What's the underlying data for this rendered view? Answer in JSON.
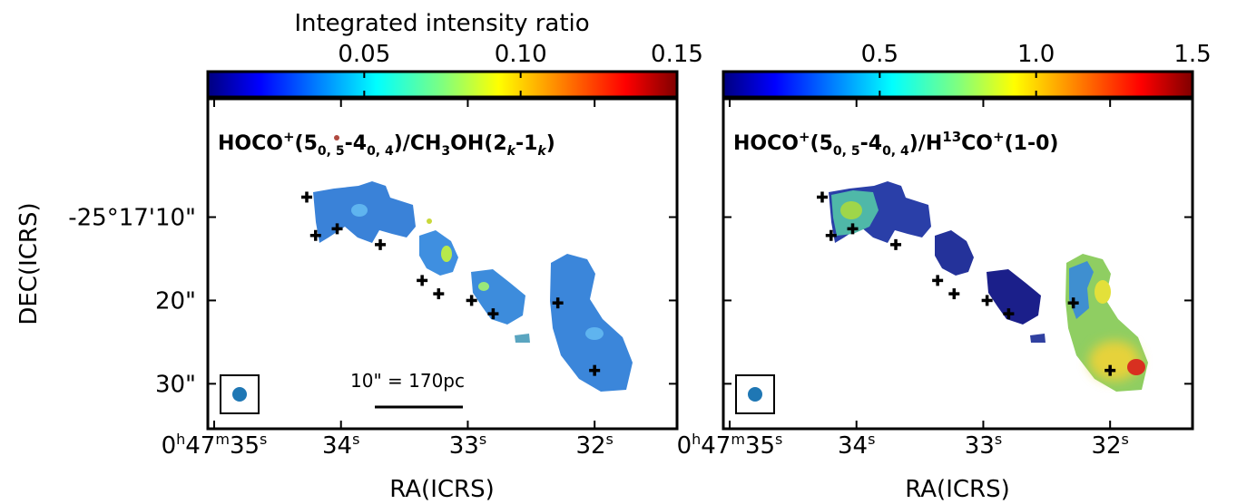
{
  "figure": {
    "shared_ylabel": "DEC(ICRS)",
    "scale_bar_label": "10\" = 170pc"
  },
  "chart_data": [
    {
      "type": "heatmap",
      "panel": "left",
      "colorbar": {
        "label": "Integrated intensity ratio",
        "min": 0.0,
        "max": 0.15,
        "ticks": [
          "0.05",
          "0.10",
          "0.15"
        ],
        "tick_values": [
          0.05,
          0.1,
          0.15
        ],
        "colormap": "jet"
      },
      "map_label": {
        "pre": "HOCO",
        "sup1": "+",
        "mid1": "(5",
        "sub1": "0, 5",
        "mid2": "-4",
        "sub2": "0, 4",
        "mid3": ")/CH",
        "sub3": "3",
        "mid4": "OH(2",
        "sub4": "k",
        "mid5": "-1",
        "sub5": "k",
        "post": ")"
      },
      "xlabel": "RA(ICRS)",
      "ylabel": "DEC(ICRS)",
      "x_ticks": [
        {
          "value": 35,
          "h": "0",
          "m": "47",
          "s": "35"
        },
        {
          "value": 34,
          "s": "34"
        },
        {
          "value": 33,
          "s": "33"
        },
        {
          "value": 32,
          "s": "32"
        }
      ],
      "y_ticks": [
        "-25°17'10\"",
        "20\"",
        "30\""
      ],
      "y_tick_values": [
        10,
        20,
        30
      ],
      "xlim": [
        35.05,
        31.35
      ],
      "ylim": [
        35.4,
        -4.2
      ],
      "beam": "circle",
      "sources": [
        {
          "ra": 34.27,
          "dec": 7.6
        },
        {
          "ra": 34.2,
          "dec": 12.2
        },
        {
          "ra": 34.03,
          "dec": 11.4
        },
        {
          "ra": 33.69,
          "dec": 13.3
        },
        {
          "ra": 33.36,
          "dec": 17.6
        },
        {
          "ra": 33.23,
          "dec": 19.2
        },
        {
          "ra": 32.97,
          "dec": 20.0
        },
        {
          "ra": 32.8,
          "dec": 21.6
        },
        {
          "ra": 32.29,
          "dec": 20.3
        },
        {
          "ra": 32.0,
          "dec": 28.4
        }
      ],
      "regions": [
        {
          "ra": 34.1,
          "dec": 12.0,
          "value": 0.035
        },
        {
          "ra": 33.7,
          "dec": 13.5,
          "value": 0.038
        },
        {
          "ra": 33.33,
          "dec": 18.0,
          "value": 0.045
        },
        {
          "ra": 32.88,
          "dec": 21.0,
          "value": 0.05
        },
        {
          "ra": 32.25,
          "dec": 23.5,
          "value": 0.035
        },
        {
          "ra": 32.02,
          "dec": 27.5,
          "value": 0.04
        }
      ]
    },
    {
      "type": "heatmap",
      "panel": "right",
      "colorbar": {
        "label": "",
        "min": 0.0,
        "max": 1.5,
        "ticks": [
          "0.5",
          "1.0",
          "1.5"
        ],
        "tick_values": [
          0.5,
          1.0,
          1.5
        ],
        "colormap": "jet"
      },
      "map_label": {
        "pre": "HOCO",
        "sup1": "+",
        "mid1": "(5",
        "sub1": "0, 5",
        "mid2": "-4",
        "sub2": "0, 4",
        "mid3": ")/H",
        "sup2": "13",
        "mid4": "CO",
        "sup3": "+",
        "post": "(1-0)"
      },
      "xlabel": "RA(ICRS)",
      "x_ticks": [
        {
          "value": 35,
          "h": "0",
          "m": "47",
          "s": "35"
        },
        {
          "value": 34,
          "s": "34"
        },
        {
          "value": 33,
          "s": "33"
        },
        {
          "value": 32,
          "s": "32"
        }
      ],
      "xlim": [
        35.05,
        31.35
      ],
      "ylim": [
        35.4,
        -4.2
      ],
      "beam": "circle",
      "sources": [
        {
          "ra": 34.27,
          "dec": 7.6
        },
        {
          "ra": 34.2,
          "dec": 12.2
        },
        {
          "ra": 34.03,
          "dec": 11.4
        },
        {
          "ra": 33.69,
          "dec": 13.3
        },
        {
          "ra": 33.36,
          "dec": 17.6
        },
        {
          "ra": 33.23,
          "dec": 19.2
        },
        {
          "ra": 32.97,
          "dec": 20.0
        },
        {
          "ra": 32.8,
          "dec": 21.6
        },
        {
          "ra": 32.29,
          "dec": 20.3
        },
        {
          "ra": 32.0,
          "dec": 28.4
        }
      ],
      "regions": [
        {
          "ra": 34.1,
          "dec": 12.0,
          "value": 0.8
        },
        {
          "ra": 33.7,
          "dec": 13.5,
          "value": 0.15
        },
        {
          "ra": 33.33,
          "dec": 18.0,
          "value": 0.1
        },
        {
          "ra": 32.88,
          "dec": 21.0,
          "value": 0.08
        },
        {
          "ra": 32.25,
          "dec": 22.0,
          "value": 0.6
        },
        {
          "ra": 32.02,
          "dec": 27.5,
          "value": 1.1
        }
      ]
    }
  ]
}
